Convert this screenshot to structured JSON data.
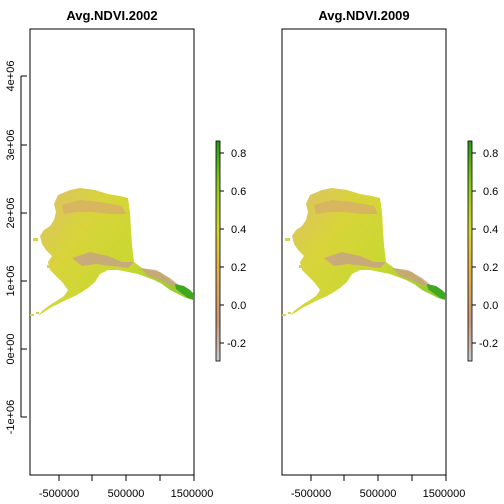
{
  "chart_data": [
    {
      "type": "heatmap",
      "title": "Avg.NDVI.2002",
      "xlabel": "",
      "ylabel": "",
      "x_ticks": [
        "-500000",
        "500000",
        "1500000"
      ],
      "y_ticks": [
        "-1e+06",
        "0e+00",
        "1e+06",
        "2e+06",
        "3e+06",
        "4e+06"
      ],
      "legend": {
        "placement": "right",
        "range": [
          -0.3,
          0.85
        ],
        "ticks": [
          "-0.2",
          "0.0",
          "0.2",
          "0.4",
          "0.6",
          "0.8"
        ],
        "colors": [
          "#cccccc",
          "#c99a7a",
          "#e3b049",
          "#d6d92b",
          "#8fca1e",
          "#2a9a14"
        ]
      }
    },
    {
      "type": "heatmap",
      "title": "Avg.NDVI.2009",
      "xlabel": "",
      "ylabel": "",
      "x_ticks": [
        "-500000",
        "500000",
        "1500000"
      ],
      "y_ticks": [],
      "legend": {
        "placement": "right",
        "range": [
          -0.3,
          0.85
        ],
        "ticks": [
          "-0.2",
          "0.0",
          "0.2",
          "0.4",
          "0.6",
          "0.8"
        ],
        "colors": [
          "#cccccc",
          "#c99a7a",
          "#e3b049",
          "#d6d92b",
          "#8fca1e",
          "#2a9a14"
        ]
      }
    }
  ]
}
